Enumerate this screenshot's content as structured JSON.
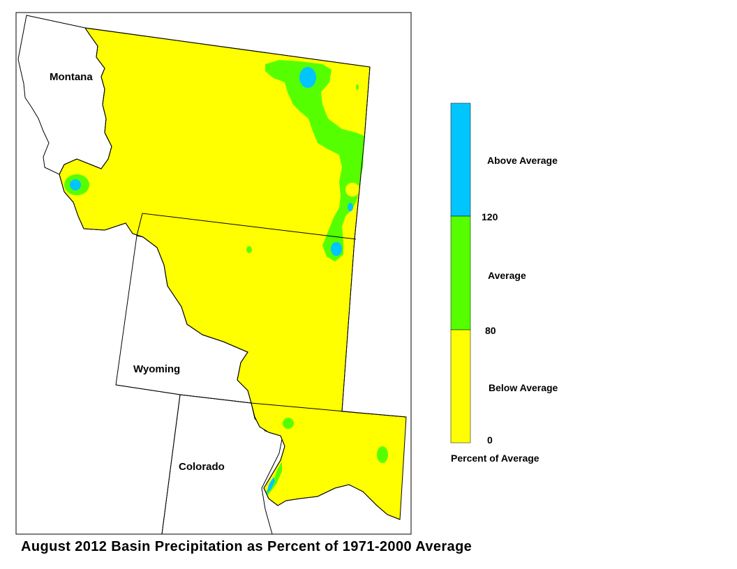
{
  "map": {
    "state_labels": {
      "montana": "Montana",
      "wyoming": "Wyoming",
      "colorado": "Colorado"
    }
  },
  "legend": {
    "title": "Percent of Average",
    "classes": [
      {
        "label": "Below Average",
        "min": 0,
        "max": 80,
        "color": "#ffff00"
      },
      {
        "label": "Average",
        "min": 80,
        "max": 120,
        "color": "#55ff00"
      },
      {
        "label": "Above Average",
        "min": 120,
        "max": null,
        "color": "#00c5ff"
      }
    ],
    "breaks": [
      "0",
      "80",
      "120"
    ]
  },
  "caption": "August 2012 Basin Precipitation as Percent of 1971-2000 Average"
}
